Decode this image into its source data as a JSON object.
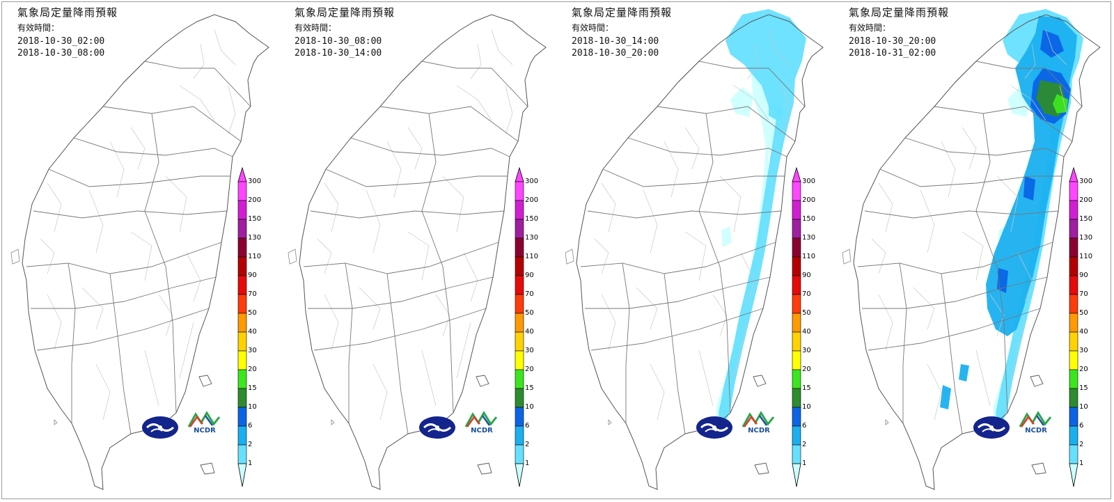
{
  "panels": [
    {
      "title": "氣象局定量降雨預報",
      "valid_label": "有效時間：",
      "start": "2018-10-30_02:00",
      "end": "2018-10-30_08:00",
      "rain": []
    },
    {
      "title": "氣象局定量降雨預報",
      "valid_label": "有效時間：",
      "start": "2018-10-30_08:00",
      "end": "2018-10-30_14:00",
      "rain": []
    },
    {
      "title": "氣象局定量降雨預報",
      "valid_label": "有效時間：",
      "start": "2018-10-30_14:00",
      "end": "2018-10-30_20:00",
      "rain": [
        1,
        2
      ]
    },
    {
      "title": "氣象局定量降雨預報",
      "valid_label": "有效時間：",
      "start": "2018-10-30_20:00",
      "end": "2018-10-31_02:00",
      "rain": [
        1,
        2,
        6,
        10,
        15,
        20
      ]
    }
  ],
  "legend": {
    "levels": [
      1,
      2,
      6,
      10,
      15,
      20,
      30,
      40,
      50,
      70,
      90,
      110,
      130,
      150,
      200,
      300
    ],
    "colors": [
      "#ccffff",
      "#66e0ff",
      "#1ab0f0",
      "#0a64e6",
      "#2d8c2d",
      "#3ce61e",
      "#ffff00",
      "#ffd200",
      "#ff9a00",
      "#ff3c0a",
      "#e60a0a",
      "#b40000",
      "#8c0032",
      "#a01ea0",
      "#d21ed2",
      "#ff46ff"
    ]
  },
  "logos": {
    "cwb_icon": "cwb-logo-icon",
    "ncdr_text": "NCDR"
  },
  "colors": {
    "border": "#555555",
    "township": "#c8c8c8"
  }
}
